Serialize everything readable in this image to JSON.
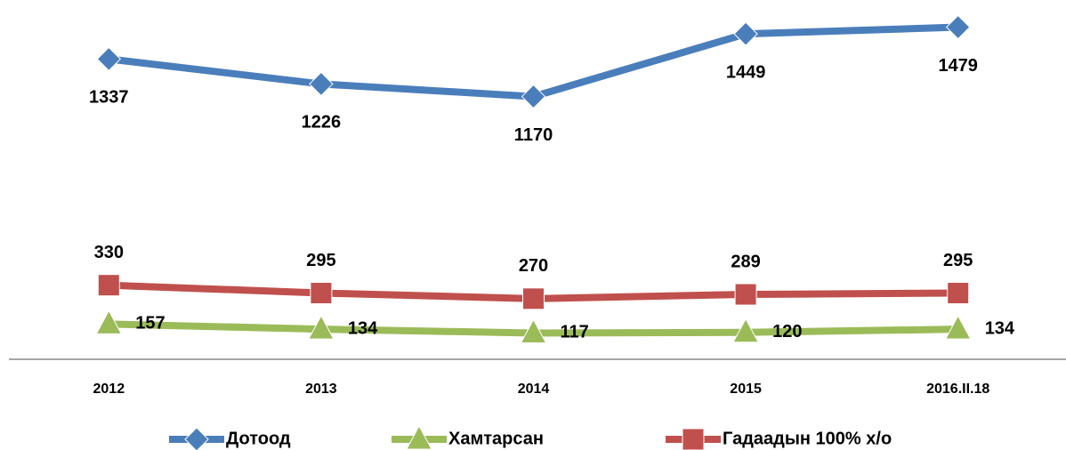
{
  "chart_data": {
    "type": "line",
    "categories": [
      "2012",
      "2013",
      "2014",
      "2015",
      "2016.II.18"
    ],
    "series": [
      {
        "name": "Дотоод",
        "color": "#4a7ebb",
        "marker": "diamond",
        "values": [
          1337,
          1226,
          1170,
          1449,
          1479
        ]
      },
      {
        "name": "Хамтарсан",
        "color": "#9bbb59",
        "marker": "triangle",
        "values": [
          157,
          134,
          117,
          120,
          134
        ]
      },
      {
        "name": "Гадаадын 100% х/о",
        "color": "#c0504d",
        "marker": "square",
        "values": [
          330,
          295,
          270,
          289,
          295
        ]
      }
    ],
    "ylim": [
      0,
      1600
    ],
    "legend": "bottom"
  }
}
